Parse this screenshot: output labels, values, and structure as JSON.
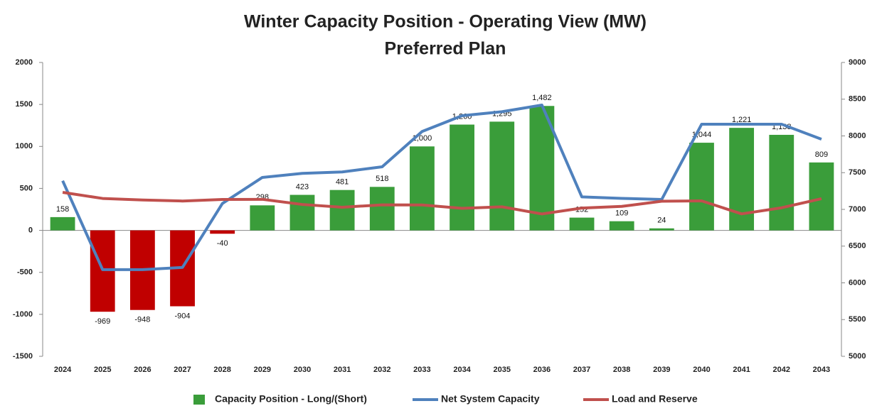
{
  "chart_data": {
    "type": "bar_line_combo",
    "title": "Winter Capacity Position - Operating View (MW)",
    "subtitle": "Preferred Plan",
    "categories": [
      "2024",
      "2025",
      "2026",
      "2027",
      "2028",
      "2029",
      "2030",
      "2031",
      "2032",
      "2033",
      "2034",
      "2035",
      "2036",
      "2037",
      "2038",
      "2039",
      "2040",
      "2041",
      "2042",
      "2043"
    ],
    "series": [
      {
        "name": "Capacity Position - Long/(Short)",
        "type": "bar",
        "axis": "y",
        "color": "#3a9d3a",
        "negative_color": "#c00000",
        "values": [
          158,
          -969,
          -948,
          -904,
          -40,
          298,
          423,
          481,
          518,
          1000,
          1260,
          1295,
          1482,
          152,
          109,
          24,
          1044,
          1221,
          1138,
          809
        ],
        "value_labels": [
          "158",
          "-969",
          "-948",
          "-904",
          "-40",
          "298",
          "423",
          "481",
          "518",
          "1,000",
          "1,260",
          "1,295",
          "1,482",
          "152",
          "109",
          "24",
          "1,044",
          "1,221",
          "1,138",
          "809"
        ]
      },
      {
        "name": "Net System Capacity",
        "type": "line",
        "axis": "y2",
        "color": "#4f81bd",
        "values": [
          7390,
          6180,
          6180,
          6210,
          7080,
          7435,
          7490,
          7510,
          7580,
          8060,
          8275,
          8330,
          8420,
          7170,
          7150,
          7135,
          8160,
          8160,
          8160,
          7955
        ]
      },
      {
        "name": "Load and Reserve",
        "type": "line",
        "axis": "y2",
        "color": "#c0504d",
        "values": [
          7232,
          7149,
          7128,
          7114,
          7135,
          7137,
          7067,
          7029,
          7062,
          7060,
          7015,
          7035,
          6938,
          7018,
          7041,
          7111,
          7116,
          6939,
          7022,
          7146
        ]
      }
    ],
    "ylim": [
      -1500,
      2000
    ],
    "yticks": [
      -1500,
      -1000,
      -500,
      0,
      500,
      1000,
      1500,
      2000
    ],
    "y2lim": [
      5000,
      9000
    ],
    "y2ticks": [
      5000,
      5500,
      6000,
      6500,
      7000,
      7500,
      8000,
      8500,
      9000
    ],
    "grid": false,
    "legend": "bottom"
  }
}
